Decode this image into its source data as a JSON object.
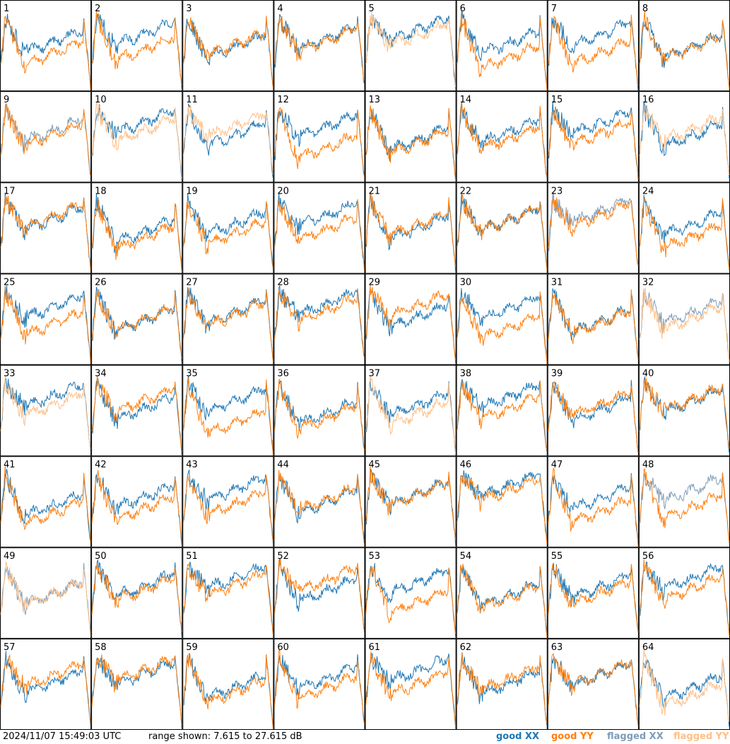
{
  "footer": {
    "timestamp": "2024/11/07 15:49:03 UTC",
    "range_text": "range shown: 7.615 to 27.615 dB"
  },
  "legend": [
    {
      "label": "good XX",
      "color": "#1f77b4"
    },
    {
      "label": "good YY",
      "color": "#ff7f0e"
    },
    {
      "label": "flagged XX",
      "color": "#7f9cb8"
    },
    {
      "label": "flagged YY",
      "color": "#ffbf87"
    }
  ],
  "chart_data": {
    "type": "line",
    "grid_columns": 8,
    "grid_rows": 8,
    "ylim": [
      7.615,
      27.615
    ],
    "y_unit": "dB",
    "series_types": [
      "XX",
      "YY"
    ],
    "colors": {
      "good_xx": "#1f77b4",
      "good_yy": "#ff7f0e",
      "flagged_xx": "#7f9cb8",
      "flagged_yy": "#ffbf87"
    },
    "panels": [
      {
        "id": "1",
        "xx": "good",
        "yy": "good"
      },
      {
        "id": "2",
        "xx": "good",
        "yy": "good"
      },
      {
        "id": "3",
        "xx": "good",
        "yy": "good"
      },
      {
        "id": "4",
        "xx": "good",
        "yy": "good"
      },
      {
        "id": "5",
        "xx": "good",
        "yy": "flagged"
      },
      {
        "id": "6",
        "xx": "good",
        "yy": "good"
      },
      {
        "id": "7",
        "xx": "good",
        "yy": "good"
      },
      {
        "id": "8",
        "xx": "good",
        "yy": "good"
      },
      {
        "id": "9",
        "xx": "flagged",
        "yy": "good"
      },
      {
        "id": "10",
        "xx": "good",
        "yy": "flagged"
      },
      {
        "id": "11",
        "xx": "good",
        "yy": "flagged"
      },
      {
        "id": "12",
        "xx": "good",
        "yy": "good"
      },
      {
        "id": "13",
        "xx": "good",
        "yy": "good"
      },
      {
        "id": "14",
        "xx": "good",
        "yy": "good"
      },
      {
        "id": "15",
        "xx": "good",
        "yy": "good"
      },
      {
        "id": "16",
        "xx": "good",
        "yy": "flagged"
      },
      {
        "id": "17",
        "xx": "good",
        "yy": "good"
      },
      {
        "id": "18",
        "xx": "good",
        "yy": "good"
      },
      {
        "id": "19",
        "xx": "good",
        "yy": "good"
      },
      {
        "id": "20",
        "xx": "good",
        "yy": "good"
      },
      {
        "id": "21",
        "xx": "good",
        "yy": "good"
      },
      {
        "id": "22",
        "xx": "good",
        "yy": "good"
      },
      {
        "id": "23",
        "xx": "flagged",
        "yy": "good"
      },
      {
        "id": "24",
        "xx": "good",
        "yy": "good"
      },
      {
        "id": "25",
        "xx": "good",
        "yy": "good"
      },
      {
        "id": "26",
        "xx": "good",
        "yy": "good"
      },
      {
        "id": "27",
        "xx": "good",
        "yy": "good"
      },
      {
        "id": "28",
        "xx": "good",
        "yy": "good"
      },
      {
        "id": "29",
        "xx": "good",
        "yy": "good"
      },
      {
        "id": "30",
        "xx": "good",
        "yy": "good"
      },
      {
        "id": "31",
        "xx": "good",
        "yy": "good"
      },
      {
        "id": "32",
        "xx": "flagged",
        "yy": "flagged"
      },
      {
        "id": "33",
        "xx": "good",
        "yy": "flagged"
      },
      {
        "id": "34",
        "xx": "good",
        "yy": "good"
      },
      {
        "id": "35",
        "xx": "good",
        "yy": "good"
      },
      {
        "id": "36",
        "xx": "good",
        "yy": "good"
      },
      {
        "id": "37",
        "xx": "good",
        "yy": "flagged"
      },
      {
        "id": "38",
        "xx": "good",
        "yy": "good"
      },
      {
        "id": "39",
        "xx": "good",
        "yy": "good"
      },
      {
        "id": "40",
        "xx": "good",
        "yy": "good"
      },
      {
        "id": "41",
        "xx": "good",
        "yy": "good"
      },
      {
        "id": "42",
        "xx": "good",
        "yy": "good"
      },
      {
        "id": "43",
        "xx": "good",
        "yy": "good"
      },
      {
        "id": "44",
        "xx": "good",
        "yy": "good"
      },
      {
        "id": "45",
        "xx": "good",
        "yy": "good"
      },
      {
        "id": "46",
        "xx": "good",
        "yy": "good"
      },
      {
        "id": "47",
        "xx": "good",
        "yy": "good"
      },
      {
        "id": "48",
        "xx": "flagged",
        "yy": "good"
      },
      {
        "id": "49",
        "xx": "flagged",
        "yy": "flagged"
      },
      {
        "id": "50",
        "xx": "good",
        "yy": "good"
      },
      {
        "id": "51",
        "xx": "good",
        "yy": "good"
      },
      {
        "id": "52",
        "xx": "good",
        "yy": "good"
      },
      {
        "id": "53",
        "xx": "good",
        "yy": "good"
      },
      {
        "id": "54",
        "xx": "good",
        "yy": "good"
      },
      {
        "id": "55",
        "xx": "good",
        "yy": "good"
      },
      {
        "id": "56",
        "xx": "good",
        "yy": "good"
      },
      {
        "id": "57",
        "xx": "good",
        "yy": "good"
      },
      {
        "id": "58",
        "xx": "good",
        "yy": "good"
      },
      {
        "id": "59",
        "xx": "good",
        "yy": "good"
      },
      {
        "id": "60",
        "xx": "good",
        "yy": "good"
      },
      {
        "id": "61",
        "xx": "good",
        "yy": "good"
      },
      {
        "id": "62",
        "xx": "good",
        "yy": "good"
      },
      {
        "id": "63",
        "xx": "good",
        "yy": "good"
      },
      {
        "id": "64",
        "xx": "good",
        "yy": "flagged"
      }
    ]
  }
}
